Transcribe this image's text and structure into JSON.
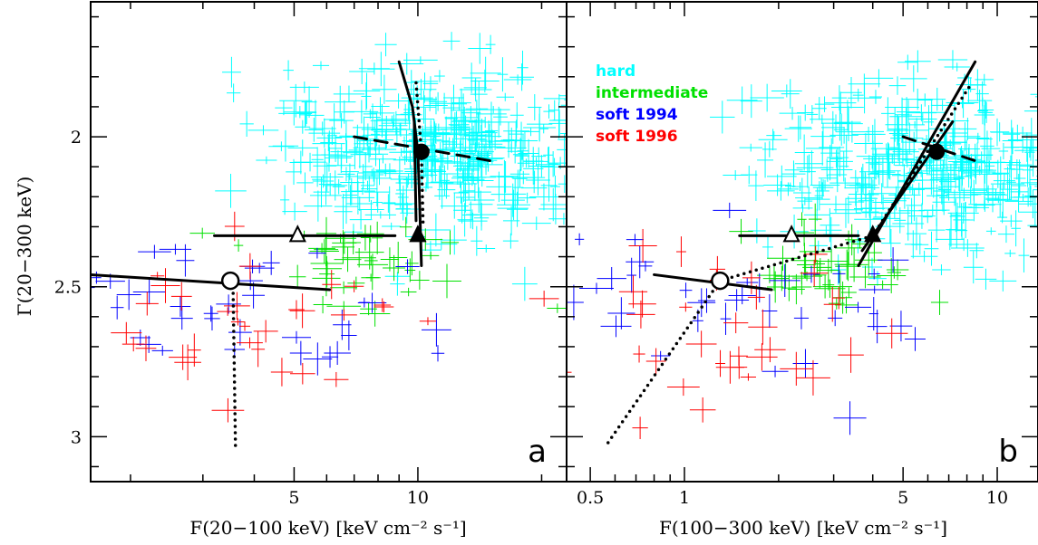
{
  "chart_data": [
    {
      "panel": "a",
      "type": "scatter",
      "xlabel": "F(20−100 keV) [keV cm⁻² s⁻¹]",
      "ylabel": "Γ(20−300 keV)",
      "x_scale": "log",
      "xlim": [
        1.6,
        23
      ],
      "ylim": [
        1.55,
        3.15
      ],
      "y_inverted": true,
      "x_ticks": [
        5,
        10
      ],
      "x_tick_labels": [
        "5",
        "10"
      ],
      "y_ticks": [
        2,
        2.5,
        3
      ],
      "y_tick_labels": [
        "2",
        "2.5",
        "3"
      ],
      "panel_letter": "a",
      "states": [
        {
          "name": "hard",
          "color": "#00ffff"
        },
        {
          "name": "intermediate",
          "color": "#00e000"
        },
        {
          "name": "soft 1994",
          "color": "#0000ff"
        },
        {
          "name": "soft 1996",
          "color": "#ff0000"
        }
      ],
      "clouds": [
        {
          "state": "hard",
          "x_center": 10.8,
          "y_center": 2.05,
          "x_sd": 0.2,
          "y_sd": 0.14,
          "n": 420
        },
        {
          "state": "intermediate",
          "x_center": 7.3,
          "y_center": 2.42,
          "x_sd": 0.14,
          "y_sd": 0.09,
          "n": 45
        },
        {
          "state": "soft 1994",
          "x_center": 4.0,
          "y_center": 2.55,
          "x_sd": 0.3,
          "y_sd": 0.12,
          "n": 40
        },
        {
          "state": "soft 1996",
          "x_center": 3.6,
          "y_center": 2.6,
          "x_sd": 0.3,
          "y_sd": 0.13,
          "n": 38
        }
      ],
      "markers": [
        {
          "shape": "filled-circle",
          "x": 10.2,
          "y": 2.05
        },
        {
          "shape": "filled-triangle",
          "x": 10.0,
          "y": 2.33
        },
        {
          "shape": "open-triangle",
          "x": 5.1,
          "y": 2.33
        },
        {
          "shape": "open-circle",
          "x": 3.5,
          "y": 2.48
        }
      ],
      "lines": [
        {
          "style": "solid",
          "points": [
            [
              9.0,
              1.75
            ],
            [
              9.7,
              1.9
            ],
            [
              10.0,
              2.05
            ],
            [
              10.1,
              2.22
            ],
            [
              10.2,
              2.43
            ]
          ]
        },
        {
          "style": "solid",
          "points": [
            [
              9.8,
              1.95
            ],
            [
              9.9,
              2.28
            ]
          ]
        },
        {
          "style": "dotted",
          "points": [
            [
              9.9,
              1.82
            ],
            [
              10.2,
              2.05
            ],
            [
              10.3,
              2.3
            ]
          ]
        },
        {
          "style": "dashed",
          "points": [
            [
              7.0,
              2.0
            ],
            [
              15.0,
              2.08
            ]
          ]
        },
        {
          "style": "solid",
          "points": [
            [
              3.2,
              2.33
            ],
            [
              8.8,
              2.33
            ]
          ]
        },
        {
          "style": "solid",
          "points": [
            [
              1.6,
              2.46
            ],
            [
              6.1,
              2.51
            ]
          ]
        },
        {
          "style": "dotted",
          "points": [
            [
              3.55,
              2.48
            ],
            [
              3.6,
              3.03
            ]
          ]
        }
      ]
    },
    {
      "panel": "b",
      "type": "scatter",
      "xlabel": "F(100−300 keV) [keV cm⁻² s⁻¹]",
      "ylabel": "",
      "x_scale": "log",
      "xlim": [
        0.42,
        13.5
      ],
      "ylim": [
        1.55,
        3.15
      ],
      "y_inverted": true,
      "x_ticks": [
        0.5,
        1,
        5,
        10
      ],
      "x_tick_labels": [
        "0.5",
        "1",
        "5",
        "10"
      ],
      "y_ticks": [
        2,
        2.5,
        3
      ],
      "panel_letter": "b",
      "legend": {
        "placement": "top-left",
        "entries": [
          {
            "label": "hard",
            "color": "#00ffff"
          },
          {
            "label": "intermediate",
            "color": "#00e000"
          },
          {
            "label": "soft  1994",
            "color": "#0000ff"
          },
          {
            "label": "soft  1996",
            "color": "#ff0000"
          }
        ]
      },
      "clouds": [
        {
          "state": "hard",
          "x_center": 6.0,
          "y_center": 2.1,
          "x_sd": 0.28,
          "y_sd": 0.14,
          "n": 420
        },
        {
          "state": "intermediate",
          "x_center": 2.8,
          "y_center": 2.45,
          "x_sd": 0.14,
          "y_sd": 0.08,
          "n": 45
        },
        {
          "state": "soft 1994",
          "x_center": 1.3,
          "y_center": 2.57,
          "x_sd": 0.3,
          "y_sd": 0.12,
          "n": 40
        },
        {
          "state": "soft 1996",
          "x_center": 1.1,
          "y_center": 2.65,
          "x_sd": 0.35,
          "y_sd": 0.14,
          "n": 38
        }
      ],
      "markers": [
        {
          "shape": "filled-circle",
          "x": 6.4,
          "y": 2.05
        },
        {
          "shape": "filled-triangle",
          "x": 4.0,
          "y": 2.33
        },
        {
          "shape": "open-triangle",
          "x": 2.2,
          "y": 2.33
        },
        {
          "shape": "open-circle",
          "x": 1.3,
          "y": 2.48
        }
      ],
      "lines": [
        {
          "style": "solid",
          "points": [
            [
              3.6,
              2.43
            ],
            [
              6.6,
              1.95
            ],
            [
              8.5,
              1.75
            ]
          ]
        },
        {
          "style": "solid",
          "points": [
            [
              3.7,
              2.38
            ],
            [
              7.2,
              1.95
            ]
          ]
        },
        {
          "style": "dotted",
          "points": [
            [
              0.57,
              3.02
            ],
            [
              1.3,
              2.48
            ],
            [
              4.0,
              2.33
            ],
            [
              8.3,
              1.82
            ]
          ]
        },
        {
          "style": "dashed",
          "points": [
            [
              5.0,
              2.0
            ],
            [
              8.5,
              2.08
            ]
          ]
        },
        {
          "style": "solid",
          "points": [
            [
              1.5,
              2.33
            ],
            [
              3.6,
              2.33
            ]
          ]
        },
        {
          "style": "solid",
          "points": [
            [
              0.8,
              2.46
            ],
            [
              1.9,
              2.51
            ]
          ]
        }
      ]
    }
  ]
}
